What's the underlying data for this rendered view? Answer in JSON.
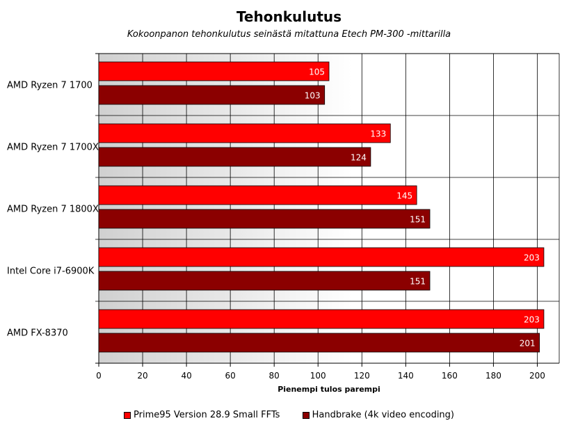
{
  "chart_data": {
    "type": "bar",
    "orientation": "horizontal",
    "title": "Tehonkulutus",
    "subtitle": "Kokoonpanon tehonkulutus seinästä mitattuna Etech PM-300 -mittarilla",
    "xlabel": "Pienempi tulos parempi",
    "ylabel": "",
    "xlim": [
      0,
      210
    ],
    "xticks": [
      0,
      20,
      40,
      60,
      80,
      100,
      120,
      140,
      160,
      180,
      200
    ],
    "grid": true,
    "legend_position": "bottom",
    "categories": [
      "AMD Ryzen 7 1700",
      "AMD Ryzen 7 1700X",
      "AMD Ryzen 7 1800X",
      "Intel Core i7-6900K",
      "AMD FX-8370"
    ],
    "series": [
      {
        "name": "Prime95 Version 28.9 Small FFTs",
        "color": "#ff0000",
        "values": [
          105,
          133,
          145,
          203,
          203
        ]
      },
      {
        "name": "Handbrake (4k video encoding)",
        "color": "#8b0000",
        "values": [
          103,
          124,
          151,
          151,
          201
        ]
      }
    ]
  }
}
